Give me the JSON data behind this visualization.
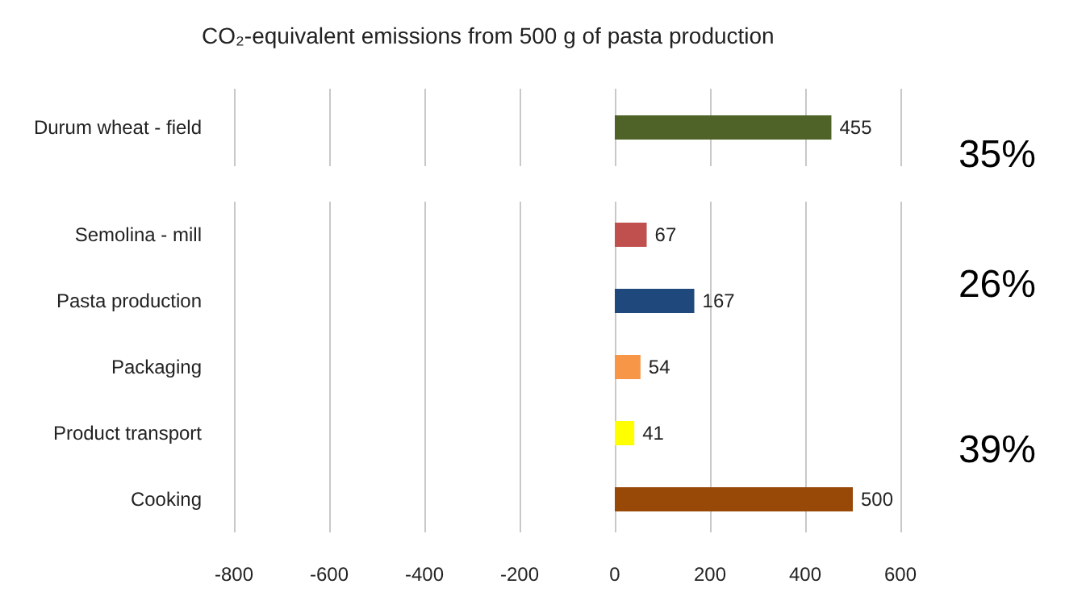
{
  "chart_data": [
    {
      "type": "bar",
      "orientation": "horizontal",
      "title": "CO₂-equivalent emissions from 500 g of pasta production",
      "categories": [
        "Durum wheat - field"
      ],
      "values": [
        455
      ],
      "colors": [
        "#4f6228"
      ],
      "xlim": [
        -800,
        600
      ],
      "xticks": [
        -800,
        -600,
        -400,
        -200,
        0,
        200,
        400,
        600
      ],
      "grid": "x",
      "data_labels": true,
      "tick_labels": "y",
      "annotations": [
        "35%"
      ]
    },
    {
      "type": "bar",
      "orientation": "horizontal",
      "categories": [
        "Semolina - mill",
        "Pasta production",
        "Packaging",
        "Product transport",
        "Cooking"
      ],
      "values": [
        67,
        167,
        54,
        41,
        500
      ],
      "colors": [
        "#c0504d",
        "#1f497d",
        "#f79646",
        "#ffff00",
        "#984807"
      ],
      "xlim": [
        -800,
        600
      ],
      "xticks": [
        -800,
        -600,
        -400,
        -200,
        0,
        200,
        400,
        600
      ],
      "grid": "x",
      "data_labels": true,
      "annotations": [
        "26%",
        "39%"
      ]
    }
  ]
}
